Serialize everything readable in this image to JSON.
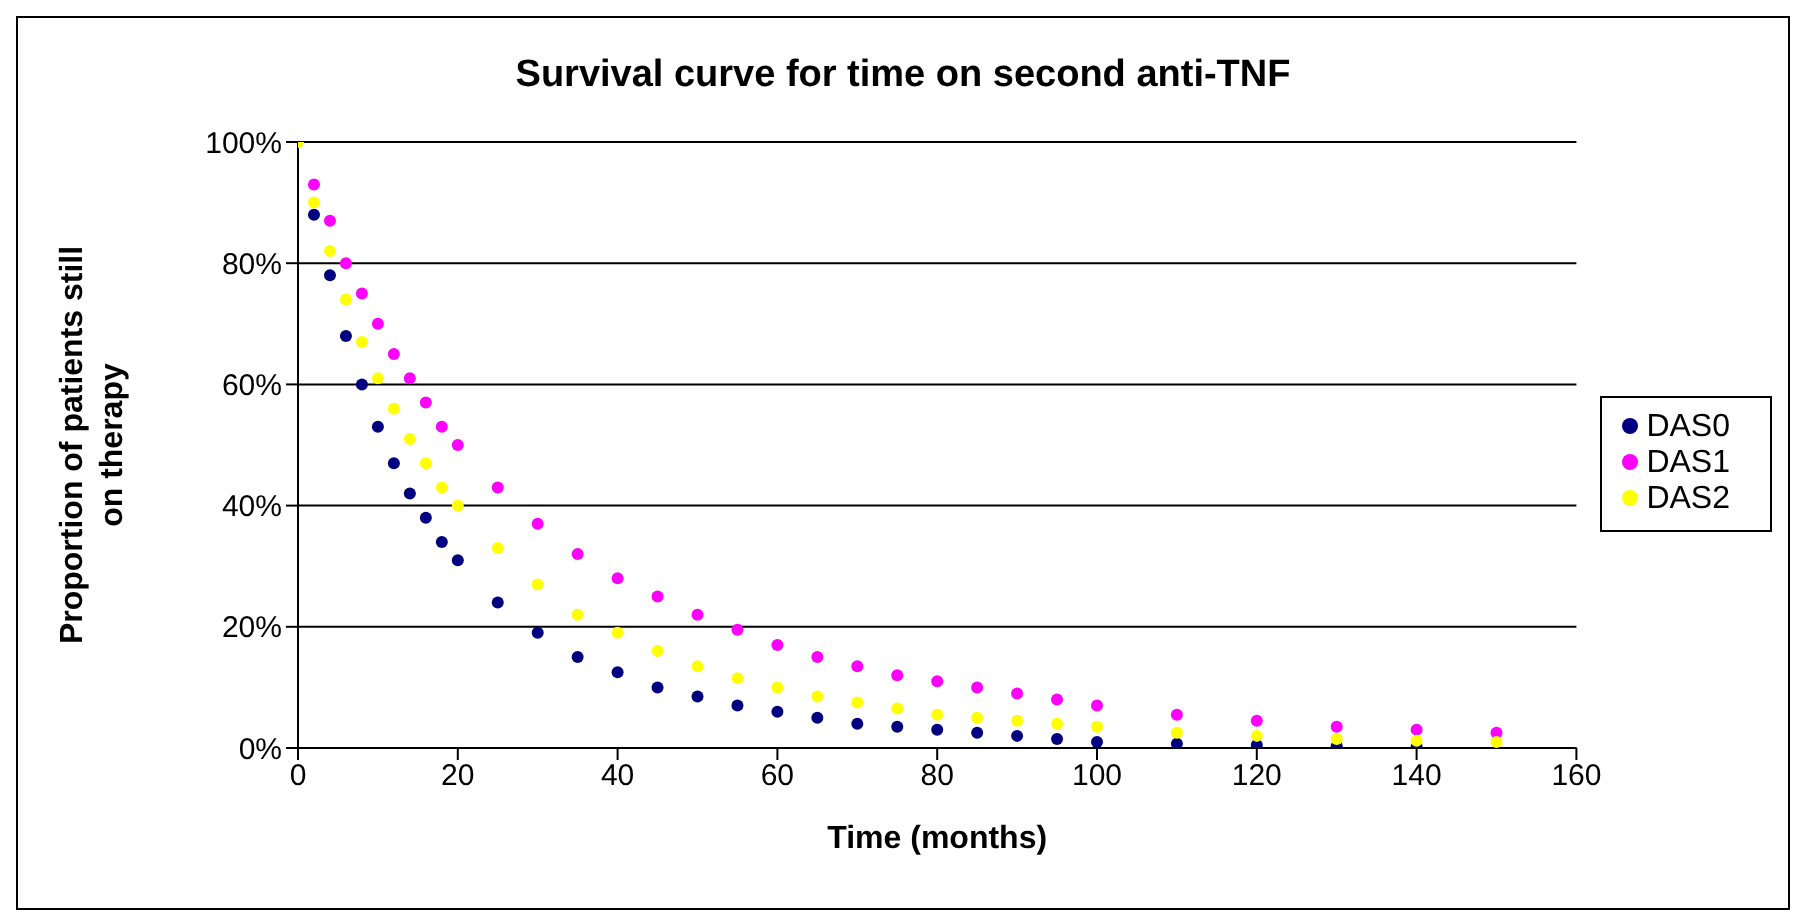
{
  "chart_data": {
    "type": "scatter",
    "title": "Survival curve for time on second anti-TNF",
    "xlabel": "Time (months)",
    "ylabel": "Proportion of patients still on therapy",
    "x": [
      0,
      2,
      4,
      6,
      8,
      10,
      12,
      14,
      16,
      18,
      20,
      25,
      30,
      35,
      40,
      45,
      50,
      55,
      60,
      65,
      70,
      75,
      80,
      85,
      90,
      95,
      100,
      110,
      120,
      130,
      140,
      150
    ],
    "series": [
      {
        "name": "DAS0",
        "color": "#000080",
        "values": [
          null,
          88,
          78,
          68,
          60,
          53,
          47,
          42,
          38,
          34,
          31,
          24,
          19,
          15,
          12.5,
          10,
          8.5,
          7,
          6,
          5,
          4,
          3.5,
          3,
          2.5,
          2,
          1.5,
          1,
          0.7,
          0.5,
          0.3,
          0.2,
          null
        ]
      },
      {
        "name": "DAS1",
        "color": "#ff00ff",
        "values": [
          null,
          93,
          87,
          80,
          75,
          70,
          65,
          61,
          57,
          53,
          50,
          43,
          37,
          32,
          28,
          25,
          22,
          19.5,
          17,
          15,
          13.5,
          12,
          11,
          10,
          9,
          8,
          7,
          5.5,
          4.5,
          3.5,
          3,
          2.5
        ]
      },
      {
        "name": "DAS2",
        "color": "#ffff00",
        "values": [
          100,
          90,
          82,
          74,
          67,
          61,
          56,
          51,
          47,
          43,
          40,
          33,
          27,
          22,
          19,
          16,
          13.5,
          11.5,
          10,
          8.5,
          7.5,
          6.5,
          5.5,
          5,
          4.5,
          4,
          3.5,
          2.5,
          2,
          1.5,
          1.2,
          1
        ]
      }
    ],
    "xlim": [
      0,
      160
    ],
    "xticks": [
      0,
      20,
      40,
      60,
      80,
      100,
      120,
      140,
      160
    ],
    "ylim": [
      0,
      100
    ],
    "yticks": [
      {
        "value": 0,
        "label": "0%"
      },
      {
        "value": 20,
        "label": "20%"
      },
      {
        "value": 40,
        "label": "40%"
      },
      {
        "value": 60,
        "label": "60%"
      },
      {
        "value": 80,
        "label": "80%"
      },
      {
        "value": 100,
        "label": "100%"
      }
    ],
    "grid": "y",
    "legend": "right",
    "marker": "circle"
  }
}
